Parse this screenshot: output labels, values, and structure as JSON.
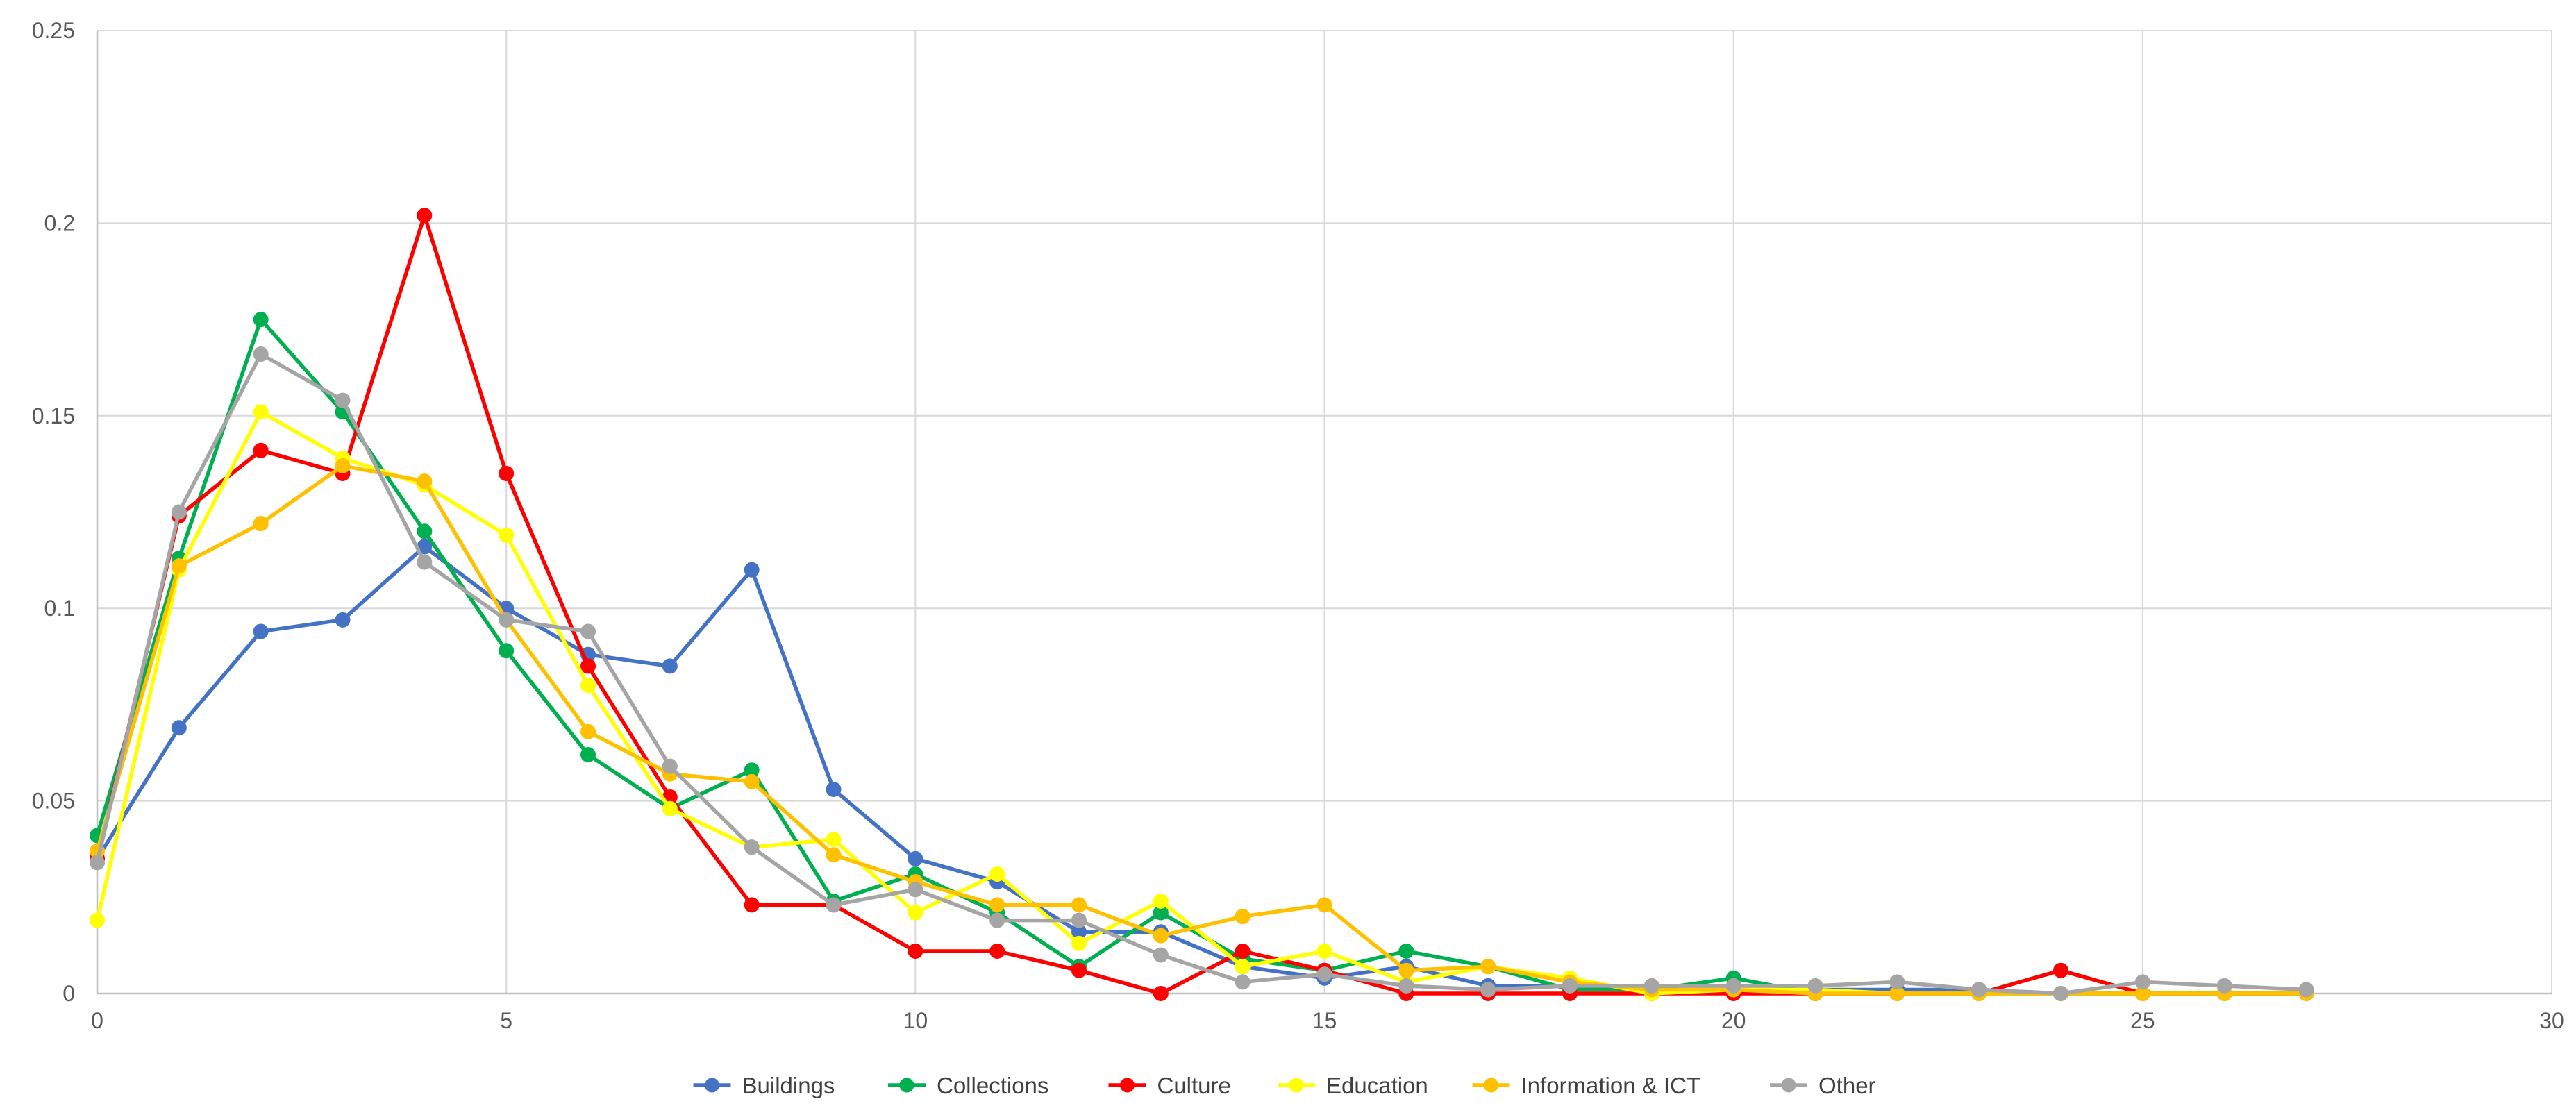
{
  "chart_data": {
    "type": "line",
    "title": "",
    "xlabel": "",
    "ylabel": "",
    "xlim": [
      0,
      30
    ],
    "ylim": [
      0,
      0.25
    ],
    "xticks": [
      0,
      5,
      10,
      15,
      20,
      25,
      30
    ],
    "yticks": [
      0,
      0.05,
      0.1,
      0.15,
      0.2,
      0.25
    ],
    "xtick_labels": [
      "0",
      "5",
      "10",
      "15",
      "20",
      "25",
      "30"
    ],
    "ytick_labels": [
      "0",
      "0.05",
      "0.1",
      "0.15",
      "0.2",
      "0.25"
    ],
    "grid": true,
    "legend": "bottom",
    "series": [
      {
        "name": "Buildings",
        "color": "#4472C4",
        "x": [
          0,
          1,
          2,
          3,
          4,
          5,
          6,
          7,
          8,
          9,
          10,
          11,
          12,
          13,
          14,
          15,
          16,
          17,
          18,
          19,
          20,
          21,
          22,
          23,
          24,
          25,
          26,
          27
        ],
        "y": [
          0.035,
          0.069,
          0.094,
          0.097,
          0.116,
          0.1,
          0.088,
          0.085,
          0.11,
          0.053,
          0.035,
          0.029,
          0.016,
          0.016,
          0.007,
          0.004,
          0.007,
          0.002,
          0.002,
          0.001,
          0.001,
          0.001,
          0.001,
          0.001,
          0.0,
          0.0,
          0.0,
          0.0
        ]
      },
      {
        "name": "Collections",
        "color": "#00B050",
        "x": [
          0,
          1,
          2,
          3,
          4,
          5,
          6,
          7,
          8,
          9,
          10,
          11,
          12,
          13,
          14,
          15,
          16,
          17,
          18,
          19,
          20,
          21,
          22,
          23,
          24,
          25,
          26,
          27
        ],
        "y": [
          0.041,
          0.113,
          0.175,
          0.151,
          0.12,
          0.089,
          0.062,
          0.048,
          0.058,
          0.024,
          0.031,
          0.021,
          0.007,
          0.021,
          0.009,
          0.006,
          0.011,
          0.007,
          0.001,
          0.001,
          0.004,
          0.0,
          0.0,
          0.0,
          0.0,
          0.0,
          0.0,
          0.0
        ]
      },
      {
        "name": "Culture",
        "color": "#FF0000",
        "x": [
          0,
          1,
          2,
          3,
          4,
          5,
          6,
          7,
          8,
          9,
          10,
          11,
          12,
          13,
          14,
          15,
          16,
          17,
          18,
          19,
          20,
          21,
          22,
          23,
          24,
          25,
          26,
          27
        ],
        "y": [
          0.035,
          0.124,
          0.141,
          0.135,
          0.202,
          0.135,
          0.085,
          0.051,
          0.023,
          0.023,
          0.011,
          0.011,
          0.006,
          0.0,
          0.011,
          0.006,
          0.0,
          0.0,
          0.0,
          0.0,
          0.0,
          0.0,
          0.0,
          0.0,
          0.006,
          0.0,
          0.0,
          0.0
        ]
      },
      {
        "name": "Education",
        "color": "#FFFF00",
        "x": [
          0,
          1,
          2,
          3,
          4,
          5,
          6,
          7,
          8,
          9,
          10,
          11,
          12,
          13,
          14,
          15,
          16,
          17,
          18,
          19,
          20,
          21,
          22,
          23,
          24,
          25,
          26,
          27
        ],
        "y": [
          0.019,
          0.11,
          0.151,
          0.139,
          0.132,
          0.119,
          0.08,
          0.048,
          0.038,
          0.04,
          0.021,
          0.031,
          0.013,
          0.024,
          0.007,
          0.011,
          0.003,
          0.007,
          0.004,
          0.0,
          0.001,
          0.001,
          0.0,
          0.0,
          0.0,
          0.0,
          0.0,
          0.0
        ]
      },
      {
        "name": "Information & ICT",
        "color": "#FFC000",
        "x": [
          0,
          1,
          2,
          3,
          4,
          5,
          6,
          7,
          8,
          9,
          10,
          11,
          12,
          13,
          14,
          15,
          16,
          17,
          18,
          19,
          20,
          21,
          22,
          23,
          24,
          25,
          26,
          27
        ],
        "y": [
          0.037,
          0.111,
          0.122,
          0.137,
          0.133,
          0.097,
          0.068,
          0.057,
          0.055,
          0.036,
          0.029,
          0.023,
          0.023,
          0.015,
          0.02,
          0.023,
          0.006,
          0.007,
          0.003,
          0.001,
          0.001,
          0.0,
          0.0,
          0.0,
          0.0,
          0.0,
          0.0,
          0.0
        ]
      },
      {
        "name": "Other",
        "color": "#A5A5A5",
        "x": [
          0,
          1,
          2,
          3,
          4,
          5,
          6,
          7,
          8,
          9,
          10,
          11,
          12,
          13,
          14,
          15,
          16,
          17,
          18,
          19,
          20,
          21,
          22,
          23,
          24,
          25,
          26,
          27
        ],
        "y": [
          0.034,
          0.125,
          0.166,
          0.154,
          0.112,
          0.097,
          0.094,
          0.059,
          0.038,
          0.023,
          0.027,
          0.019,
          0.019,
          0.01,
          0.003,
          0.005,
          0.002,
          0.001,
          0.002,
          0.002,
          0.002,
          0.002,
          0.003,
          0.001,
          0.0,
          0.003,
          0.002,
          0.001
        ]
      }
    ]
  }
}
